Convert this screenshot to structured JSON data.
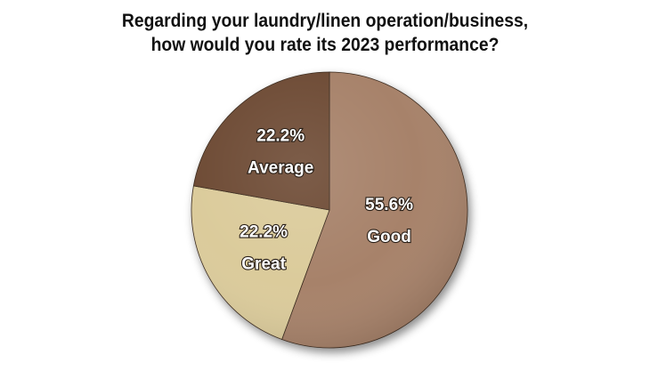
{
  "chart_data": {
    "type": "pie",
    "title_lines": [
      "Regarding your laundry/linen operation/business,",
      "how would you rate its 2023 performance?"
    ],
    "slices": [
      {
        "label": "Good",
        "value": 55.6,
        "value_label": "55.6%",
        "color": "#a7826a"
      },
      {
        "label": "Great",
        "value": 22.2,
        "value_label": "22.2%",
        "color": "#dbcb9b"
      },
      {
        "label": "Average",
        "value": 22.2,
        "value_label": "22.2%",
        "color": "#6e4c36"
      }
    ],
    "start": "12 o'clock",
    "direction": "clockwise",
    "legend": "none"
  }
}
